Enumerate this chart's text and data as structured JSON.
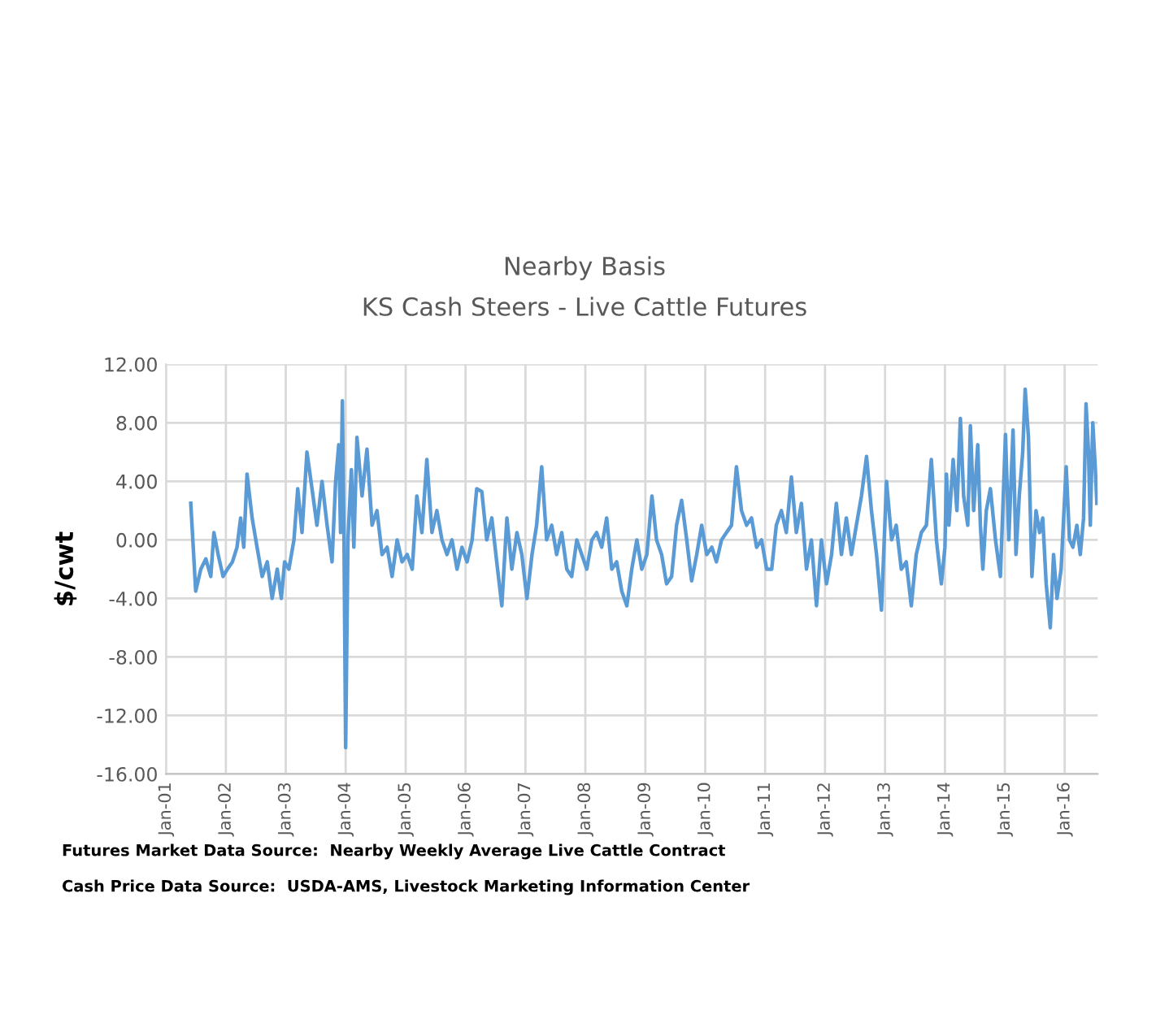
{
  "chart_data": {
    "type": "line",
    "title": "Nearby Basis",
    "subtitle": "KS Cash Steers - Live Cattle Futures",
    "ylabel": "$/cwt",
    "annotations": [
      "Futures Market Data Source:  Nearby Weekly Average Live Cattle Contract",
      "Cash Price Data Source:  USDA-AMS, Livestock Marketing Information Center"
    ],
    "series": [
      {
        "color": "#5b9bd5",
        "x": [
          "2001-06-01",
          "2001-07-01",
          "2001-08-01",
          "2001-09-01",
          "2001-10-01",
          "2001-10-20",
          "2001-11-15",
          "2001-12-15",
          "2002-01-10",
          "2002-02-10",
          "2002-03-10",
          "2002-04-01",
          "2002-04-20",
          "2002-05-10",
          "2002-06-10",
          "2002-07-10",
          "2002-08-10",
          "2002-09-10",
          "2002-10-10",
          "2002-11-10",
          "2002-12-05",
          "2002-12-25",
          "2003-01-20",
          "2003-02-20",
          "2003-03-15",
          "2003-04-10",
          "2003-05-10",
          "2003-06-10",
          "2003-07-10",
          "2003-08-10",
          "2003-09-10",
          "2003-10-10",
          "2003-11-01",
          "2003-11-20",
          "2003-12-01",
          "2003-12-12",
          "2003-12-22",
          "2004-01-01",
          "2004-01-15",
          "2004-02-05",
          "2004-02-20",
          "2004-03-10",
          "2004-04-10",
          "2004-05-10",
          "2004-06-10",
          "2004-07-10",
          "2004-08-10",
          "2004-09-10",
          "2004-10-10",
          "2004-11-10",
          "2004-12-10",
          "2005-01-10",
          "2005-02-10",
          "2005-03-10",
          "2005-04-10",
          "2005-05-10",
          "2005-06-10",
          "2005-07-10",
          "2005-08-10",
          "2005-09-10",
          "2005-10-10",
          "2005-11-10",
          "2005-12-10",
          "2006-01-10",
          "2006-02-10",
          "2006-03-10",
          "2006-04-10",
          "2006-05-10",
          "2006-06-10",
          "2006-07-10",
          "2006-08-10",
          "2006-09-10",
          "2006-10-10",
          "2006-11-10",
          "2006-12-10",
          "2007-01-10",
          "2007-02-10",
          "2007-03-10",
          "2007-04-10",
          "2007-05-10",
          "2007-06-10",
          "2007-07-10",
          "2007-08-10",
          "2007-09-10",
          "2007-10-10",
          "2007-11-10",
          "2007-12-10",
          "2008-01-10",
          "2008-02-10",
          "2008-03-10",
          "2008-04-10",
          "2008-05-10",
          "2008-06-10",
          "2008-07-10",
          "2008-08-10",
          "2008-09-10",
          "2008-10-10",
          "2008-11-10",
          "2008-12-10",
          "2009-01-10",
          "2009-02-10",
          "2009-03-10",
          "2009-04-10",
          "2009-05-10",
          "2009-06-10",
          "2009-07-10",
          "2009-08-10",
          "2009-09-10",
          "2009-10-10",
          "2009-11-10",
          "2009-12-10",
          "2010-01-10",
          "2010-02-10",
          "2010-03-10",
          "2010-04-10",
          "2010-05-10",
          "2010-06-10",
          "2010-07-10",
          "2010-08-10",
          "2010-09-10",
          "2010-10-10",
          "2010-11-10",
          "2010-12-10",
          "2011-01-10",
          "2011-02-10",
          "2011-03-10",
          "2011-04-10",
          "2011-05-10",
          "2011-06-10",
          "2011-07-10",
          "2011-08-10",
          "2011-09-10",
          "2011-10-10",
          "2011-11-10",
          "2011-12-10",
          "2012-01-10",
          "2012-02-10",
          "2012-03-10",
          "2012-04-10",
          "2012-05-10",
          "2012-06-10",
          "2012-07-10",
          "2012-08-10",
          "2012-09-10",
          "2012-10-10",
          "2012-11-10",
          "2012-12-10",
          "2013-01-10",
          "2013-02-10",
          "2013-03-10",
          "2013-04-10",
          "2013-05-10",
          "2013-06-10",
          "2013-07-10",
          "2013-08-10",
          "2013-09-10",
          "2013-10-10",
          "2013-11-10",
          "2013-12-10",
          "2014-01-01",
          "2014-01-10",
          "2014-01-25",
          "2014-02-20",
          "2014-03-15",
          "2014-04-05",
          "2014-04-25",
          "2014-05-20",
          "2014-06-05",
          "2014-06-25",
          "2014-07-20",
          "2014-08-05",
          "2014-08-20",
          "2014-09-10",
          "2014-10-05",
          "2014-11-05",
          "2014-12-05",
          "2015-01-05",
          "2015-01-25",
          "2015-02-20",
          "2015-03-10",
          "2015-03-30",
          "2015-04-20",
          "2015-05-05",
          "2015-05-25",
          "2015-06-15",
          "2015-07-10",
          "2015-08-01",
          "2015-08-20",
          "2015-09-10",
          "2015-10-05",
          "2015-10-25",
          "2015-11-15",
          "2015-12-10",
          "2016-01-10",
          "2016-01-30",
          "2016-02-20",
          "2016-03-15",
          "2016-04-05",
          "2016-04-25",
          "2016-05-10",
          "2016-05-25",
          "2016-06-05",
          "2016-06-20",
          "2016-07-05",
          "2016-07-15"
        ],
        "values": [
          2.5,
          -3.5,
          -2,
          -1.3,
          -2.5,
          0.5,
          -1,
          -2.5,
          -2,
          -1.5,
          -0.5,
          1.5,
          -0.5,
          4.5,
          1.5,
          -0.5,
          -2.5,
          -1.5,
          -4,
          -2,
          -4,
          -1.5,
          -2,
          0,
          3.5,
          0.5,
          6,
          3.5,
          1,
          4,
          1,
          -1.5,
          4,
          6.5,
          0.5,
          9.5,
          0,
          -14.2,
          0,
          4.8,
          -0.5,
          7,
          3,
          6.2,
          1,
          2,
          -1,
          -0.5,
          -2.5,
          0,
          -1.5,
          -1,
          -2,
          3,
          0.5,
          5.5,
          0.5,
          2,
          0,
          -1,
          0,
          -2,
          -0.5,
          -1.5,
          0,
          3.5,
          3.3,
          0,
          1.5,
          -1.5,
          -4.5,
          1.5,
          -2,
          0.5,
          -1,
          -4,
          -1,
          1,
          5,
          0,
          1,
          -1,
          0.5,
          -2,
          -2.5,
          0,
          -1,
          -2,
          0,
          0.5,
          -0.5,
          1.5,
          -2,
          -1.5,
          -3.5,
          -4.5,
          -2,
          0,
          -2,
          -1,
          3,
          0,
          -1,
          -3,
          -2.5,
          1,
          2.7,
          0,
          -2.8,
          -1,
          1,
          -1,
          -0.5,
          -1.5,
          0,
          0.5,
          1,
          5,
          2,
          1,
          1.5,
          -0.5,
          0,
          -2,
          -2,
          1,
          2,
          0.5,
          4.3,
          0.5,
          2.5,
          -2,
          0,
          -4.5,
          0,
          -3,
          -1,
          2.5,
          -1,
          1.5,
          -1,
          1,
          3,
          5.7,
          2,
          -1,
          -4.8,
          4,
          0,
          1,
          -2,
          -1.5,
          -4.5,
          -1,
          0.5,
          1,
          5.5,
          0,
          -3,
          -0.5,
          4.5,
          1,
          5.5,
          2,
          8.3,
          3,
          1,
          7.8,
          2,
          6.5,
          1,
          -2,
          2,
          3.5,
          0,
          -2.5,
          7.2,
          0,
          7.5,
          -1,
          3,
          6,
          10.3,
          7,
          -2.5,
          2,
          0.5,
          1.5,
          -3,
          -6,
          -1,
          -4,
          -2,
          5,
          0,
          -0.5,
          1,
          -1,
          1.5,
          9.3,
          6,
          1,
          8,
          5,
          2.5
        ]
      }
    ],
    "xlim": [
      "2001-01-01",
      "2016-07-20"
    ],
    "xticks": [
      {
        "value": "2001-01-01",
        "label": "Jan-01"
      },
      {
        "value": "2002-01-01",
        "label": "Jan-02"
      },
      {
        "value": "2003-01-01",
        "label": "Jan-03"
      },
      {
        "value": "2004-01-01",
        "label": "Jan-04"
      },
      {
        "value": "2005-01-01",
        "label": "Jan-05"
      },
      {
        "value": "2006-01-01",
        "label": "Jan-06"
      },
      {
        "value": "2007-01-01",
        "label": "Jan-07"
      },
      {
        "value": "2008-01-01",
        "label": "Jan-08"
      },
      {
        "value": "2009-01-01",
        "label": "Jan-09"
      },
      {
        "value": "2010-01-01",
        "label": "Jan-10"
      },
      {
        "value": "2011-01-01",
        "label": "Jan-11"
      },
      {
        "value": "2012-01-01",
        "label": "Jan-12"
      },
      {
        "value": "2013-01-01",
        "label": "Jan-13"
      },
      {
        "value": "2014-01-01",
        "label": "Jan-14"
      },
      {
        "value": "2015-01-01",
        "label": "Jan-15"
      },
      {
        "value": "2016-01-01",
        "label": "Jan-16"
      }
    ],
    "ylim": [
      -16,
      12
    ],
    "yticks": [
      {
        "value": -16,
        "label": "-16.00"
      },
      {
        "value": -12,
        "label": "-12.00"
      },
      {
        "value": -8,
        "label": "-8.00"
      },
      {
        "value": -4,
        "label": "-4.00"
      },
      {
        "value": 0,
        "label": "0.00"
      },
      {
        "value": 4,
        "label": "4.00"
      },
      {
        "value": 8,
        "label": "8.00"
      },
      {
        "value": 12,
        "label": "12.00"
      }
    ],
    "grid": true,
    "marker": "none",
    "line_style": "solid"
  }
}
